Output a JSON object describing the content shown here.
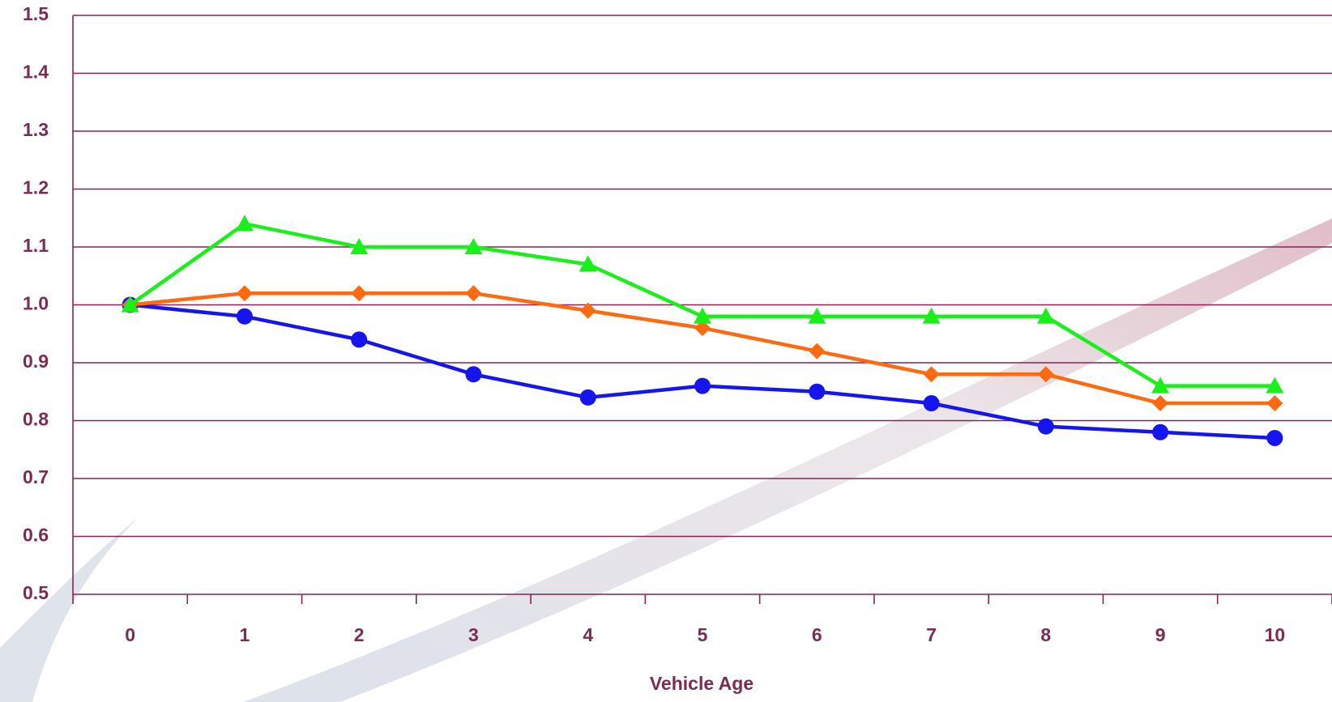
{
  "chart_data": {
    "type": "line",
    "x_label": "Vehicle Age",
    "categories": [
      "0",
      "1",
      "2",
      "3",
      "4",
      "5",
      "6",
      "7",
      "8",
      "9",
      "10"
    ],
    "series": [
      {
        "color": "#1515f0",
        "marker": "circle",
        "values": [
          1.0,
          0.98,
          0.94,
          0.88,
          0.84,
          0.86,
          0.85,
          0.83,
          0.79,
          0.78,
          0.77
        ]
      },
      {
        "color": "#ff6a10",
        "marker": "diamond",
        "values": [
          1.0,
          1.02,
          1.02,
          1.02,
          0.99,
          0.96,
          0.92,
          0.88,
          0.88,
          0.83,
          0.83
        ]
      },
      {
        "color": "#19f019",
        "marker": "triangle",
        "values": [
          1.0,
          1.14,
          1.1,
          1.1,
          1.07,
          0.98,
          0.98,
          0.98,
          0.98,
          0.86,
          0.86
        ]
      }
    ],
    "ylim": [
      0.5,
      1.5
    ],
    "yticks": [
      0.5,
      0.6,
      0.7,
      0.8,
      0.9,
      {
        "value": 1,
        "label": "1.0"
      },
      1.1,
      1.2,
      1.3,
      1.4,
      1.5
    ],
    "grid": true
  }
}
